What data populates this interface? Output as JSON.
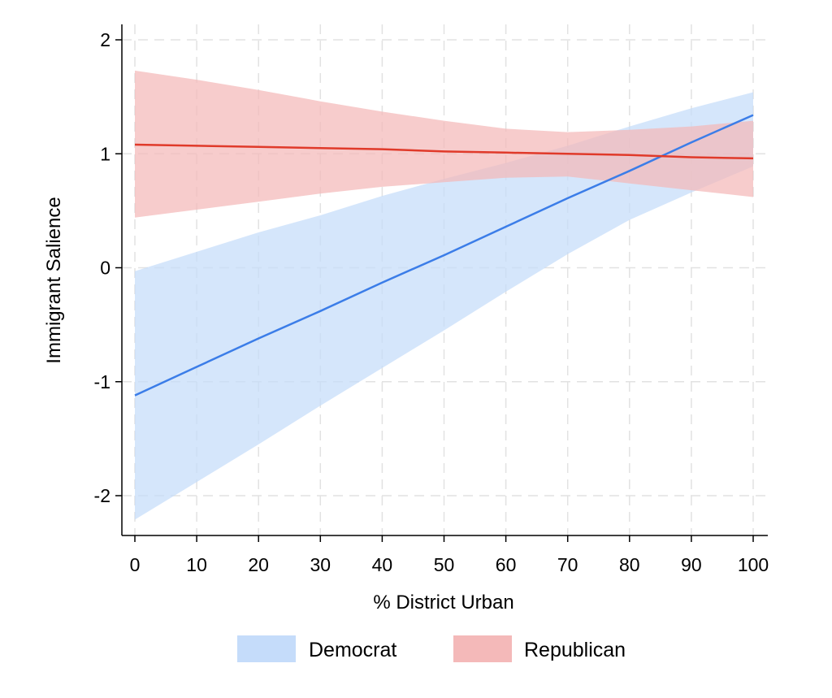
{
  "chart_data": {
    "type": "line",
    "title": "",
    "xlabel": "% District Urban",
    "ylabel": "Immigrant Salience",
    "xlim": [
      0,
      100
    ],
    "ylim": [
      -2.2,
      2.0
    ],
    "x_ticks": [
      0,
      10,
      20,
      30,
      40,
      50,
      60,
      70,
      80,
      90,
      100
    ],
    "x_tick_labels": [
      "0",
      "10",
      "20",
      "30",
      "40",
      "50",
      "60",
      "70",
      "80",
      "90",
      "100"
    ],
    "y_ticks": [
      -2,
      -1,
      0,
      1,
      2
    ],
    "y_tick_labels": [
      "-2",
      "-1",
      "0",
      "1",
      "2"
    ],
    "grid": true,
    "legend_position": "bottom",
    "x": [
      0,
      10,
      20,
      30,
      40,
      50,
      60,
      70,
      80,
      90,
      100
    ],
    "series": [
      {
        "name": "Democrat",
        "color": "#3b7de8",
        "band_color": "#c5dcfa",
        "values": [
          -1.12,
          -0.87,
          -0.62,
          -0.38,
          -0.13,
          0.11,
          0.36,
          0.61,
          0.85,
          1.1,
          1.34
        ],
        "lower": [
          -2.21,
          -1.88,
          -1.55,
          -1.21,
          -0.88,
          -0.55,
          -0.21,
          0.12,
          0.42,
          0.66,
          0.89
        ],
        "upper": [
          -0.03,
          0.14,
          0.31,
          0.46,
          0.63,
          0.78,
          0.92,
          1.07,
          1.24,
          1.4,
          1.54
        ]
      },
      {
        "name": "Republican",
        "color": "#e03a2a",
        "band_color": "#f4b9b9",
        "values": [
          1.08,
          1.07,
          1.06,
          1.05,
          1.04,
          1.02,
          1.01,
          1.0,
          0.99,
          0.97,
          0.96
        ],
        "lower": [
          0.44,
          0.51,
          0.58,
          0.65,
          0.71,
          0.75,
          0.79,
          0.8,
          0.74,
          0.68,
          0.62
        ],
        "upper": [
          1.73,
          1.65,
          1.56,
          1.46,
          1.37,
          1.29,
          1.22,
          1.19,
          1.21,
          1.24,
          1.29
        ]
      }
    ]
  }
}
